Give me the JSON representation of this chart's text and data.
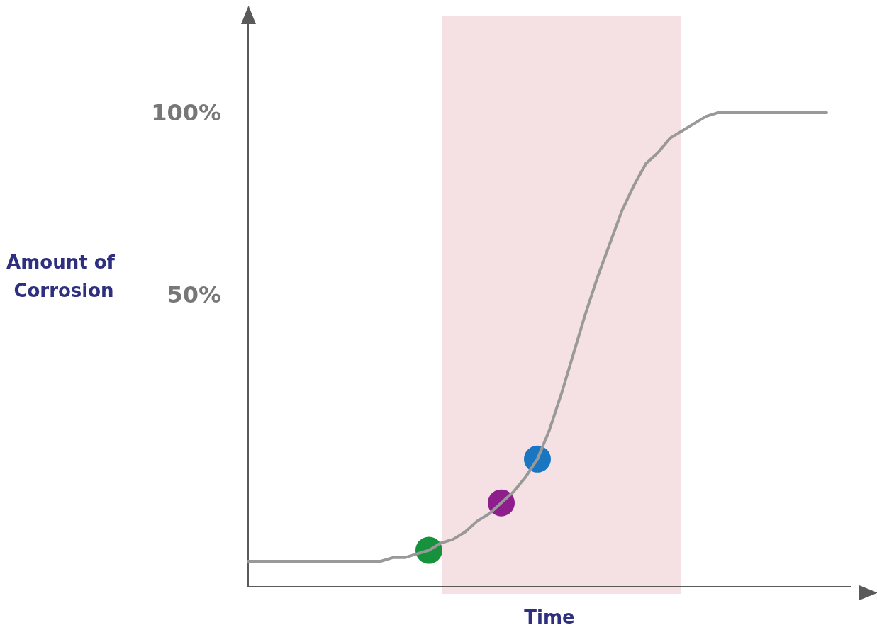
{
  "chart_data": {
    "type": "line",
    "xlabel": "Time",
    "ylabel": "Amount of Corrosion",
    "categories": [
      null,
      null,
      null,
      null,
      null,
      null,
      null,
      null,
      null,
      null,
      null,
      null,
      null,
      null,
      null,
      null,
      null,
      null,
      null,
      null,
      null,
      null,
      null,
      null,
      null,
      null,
      null,
      null,
      null,
      null,
      null,
      null,
      null,
      null,
      null,
      null,
      null,
      null,
      null,
      null,
      null,
      null,
      null,
      null,
      null,
      null,
      null,
      null,
      null,
      null,
      null
    ],
    "series": [
      {
        "color": "#999999",
        "values": [
          -23,
          -23,
          -23,
          -23,
          -23,
          -23,
          -23,
          -23,
          -23,
          -23,
          -23,
          -23,
          -22,
          -22,
          -21,
          -20,
          -18,
          -17,
          -15,
          -12,
          -10,
          -7,
          -4,
          0,
          5,
          13,
          23,
          34,
          45,
          55,
          64,
          73,
          80,
          86,
          89,
          93,
          95,
          97,
          99,
          100,
          100,
          100,
          100,
          100,
          100,
          100,
          100,
          100,
          100,
          null,
          null
        ]
      },
      {
        "type": "scatter",
        "marker": "circle",
        "color": "#16923c",
        "values": [
          null,
          null,
          null,
          null,
          null,
          null,
          null,
          null,
          null,
          null,
          null,
          null,
          null,
          null,
          null,
          -20,
          null,
          null,
          null,
          null,
          null,
          null,
          null,
          null,
          null,
          null,
          null,
          null,
          null,
          null,
          null,
          null,
          null,
          null,
          null,
          null,
          null,
          null,
          null,
          null,
          null,
          null,
          null,
          null,
          null,
          null,
          null,
          null,
          null,
          null,
          null
        ]
      },
      {
        "type": "scatter",
        "marker": "circle",
        "color": "#8e1e8c",
        "values": [
          null,
          null,
          null,
          null,
          null,
          null,
          null,
          null,
          null,
          null,
          null,
          null,
          null,
          null,
          null,
          null,
          null,
          null,
          null,
          null,
          null,
          -7,
          null,
          null,
          null,
          null,
          null,
          null,
          null,
          null,
          null,
          null,
          null,
          null,
          null,
          null,
          null,
          null,
          null,
          null,
          null,
          null,
          null,
          null,
          null,
          null,
          null,
          null,
          null,
          null,
          null
        ]
      },
      {
        "type": "scatter",
        "marker": "circle",
        "color": "#1a76c1",
        "values": [
          null,
          null,
          null,
          null,
          null,
          null,
          null,
          null,
          null,
          null,
          null,
          null,
          null,
          null,
          null,
          null,
          null,
          null,
          null,
          null,
          null,
          null,
          null,
          null,
          5,
          null,
          null,
          null,
          null,
          null,
          null,
          null,
          null,
          null,
          null,
          null,
          null,
          null,
          null,
          null,
          null,
          null,
          null,
          null,
          null,
          null,
          null,
          null,
          null,
          null,
          null
        ]
      }
    ],
    "ylim": [
      -30,
      127
    ],
    "yticks": [
      {
        "value": 50,
        "label": "50%"
      },
      {
        "value": 100,
        "label": "100%"
      }
    ],
    "tick_labels": "y",
    "grid": false
  }
}
